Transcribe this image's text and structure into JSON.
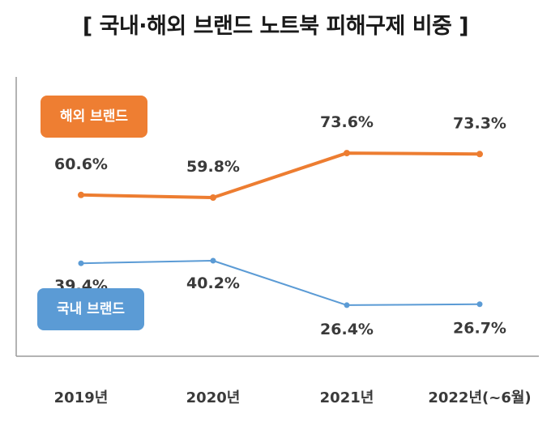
{
  "title": "[ 국내·해외 브랜드 노트북 피해구제 비중 ]",
  "chart_data": {
    "type": "line",
    "title": "[ 국내·해외 브랜드 노트북 피해구제 비중 ]",
    "categories": [
      "2019년",
      "2020년",
      "2021년",
      "2022년(~6월)"
    ],
    "series": [
      {
        "name": "해외 브랜드",
        "values": [
          60.6,
          59.8,
          73.6,
          73.3
        ],
        "labels": [
          "60.6%",
          "59.8%",
          "73.6%",
          "73.3%"
        ],
        "color": "#ed7d31"
      },
      {
        "name": "국내 브랜드",
        "values": [
          39.4,
          40.2,
          26.4,
          26.7
        ],
        "labels": [
          "39.4%",
          "40.2%",
          "26.4%",
          "26.7%"
        ],
        "color": "#5b9bd5"
      }
    ],
    "ylim": [
      0,
      100
    ],
    "grid": false,
    "legend": "inside-left"
  }
}
